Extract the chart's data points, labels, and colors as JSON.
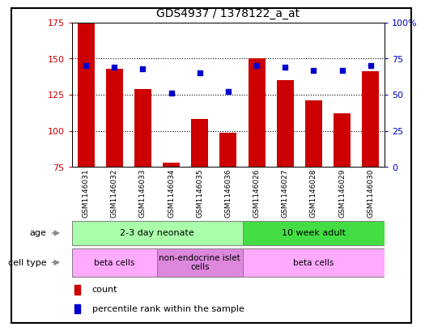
{
  "title": "GDS4937 / 1378122_a_at",
  "samples": [
    "GSM1146031",
    "GSM1146032",
    "GSM1146033",
    "GSM1146034",
    "GSM1146035",
    "GSM1146036",
    "GSM1146026",
    "GSM1146027",
    "GSM1146028",
    "GSM1146029",
    "GSM1146030"
  ],
  "counts": [
    175,
    143,
    129,
    78,
    108,
    99,
    150,
    135,
    121,
    112,
    141
  ],
  "percentiles": [
    70,
    69,
    68,
    51,
    65,
    52,
    70,
    69,
    67,
    67,
    70
  ],
  "ylim_left": [
    75,
    175
  ],
  "ylim_right": [
    0,
    100
  ],
  "yticks_left": [
    75,
    100,
    125,
    150,
    175
  ],
  "yticks_right": [
    0,
    25,
    50,
    75,
    100
  ],
  "ytick_labels_left": [
    "75",
    "100",
    "125",
    "150",
    "175"
  ],
  "ytick_labels_right": [
    "0",
    "25",
    "50",
    "75",
    "100%"
  ],
  "bar_color": "#cc0000",
  "dot_color": "#0000cc",
  "grid_dotted_at": [
    100,
    125,
    150
  ],
  "age_groups": [
    {
      "label": "2-3 day neonate",
      "start": 0,
      "end": 6,
      "color": "#aaffaa"
    },
    {
      "label": "10 week adult",
      "start": 6,
      "end": 11,
      "color": "#44dd44"
    }
  ],
  "cell_type_groups": [
    {
      "label": "beta cells",
      "start": 0,
      "end": 3,
      "color": "#ffaaff"
    },
    {
      "label": "non-endocrine islet\ncells",
      "start": 3,
      "end": 6,
      "color": "#dd88dd"
    },
    {
      "label": "beta cells",
      "start": 6,
      "end": 11,
      "color": "#ffaaff"
    }
  ],
  "legend_count_label": "count",
  "legend_percentile_label": "percentile rank within the sample",
  "background_color": "#ffffff",
  "sample_box_color": "#cccccc",
  "age_label": "age",
  "cell_type_label": "cell type",
  "border_color": "#000000"
}
